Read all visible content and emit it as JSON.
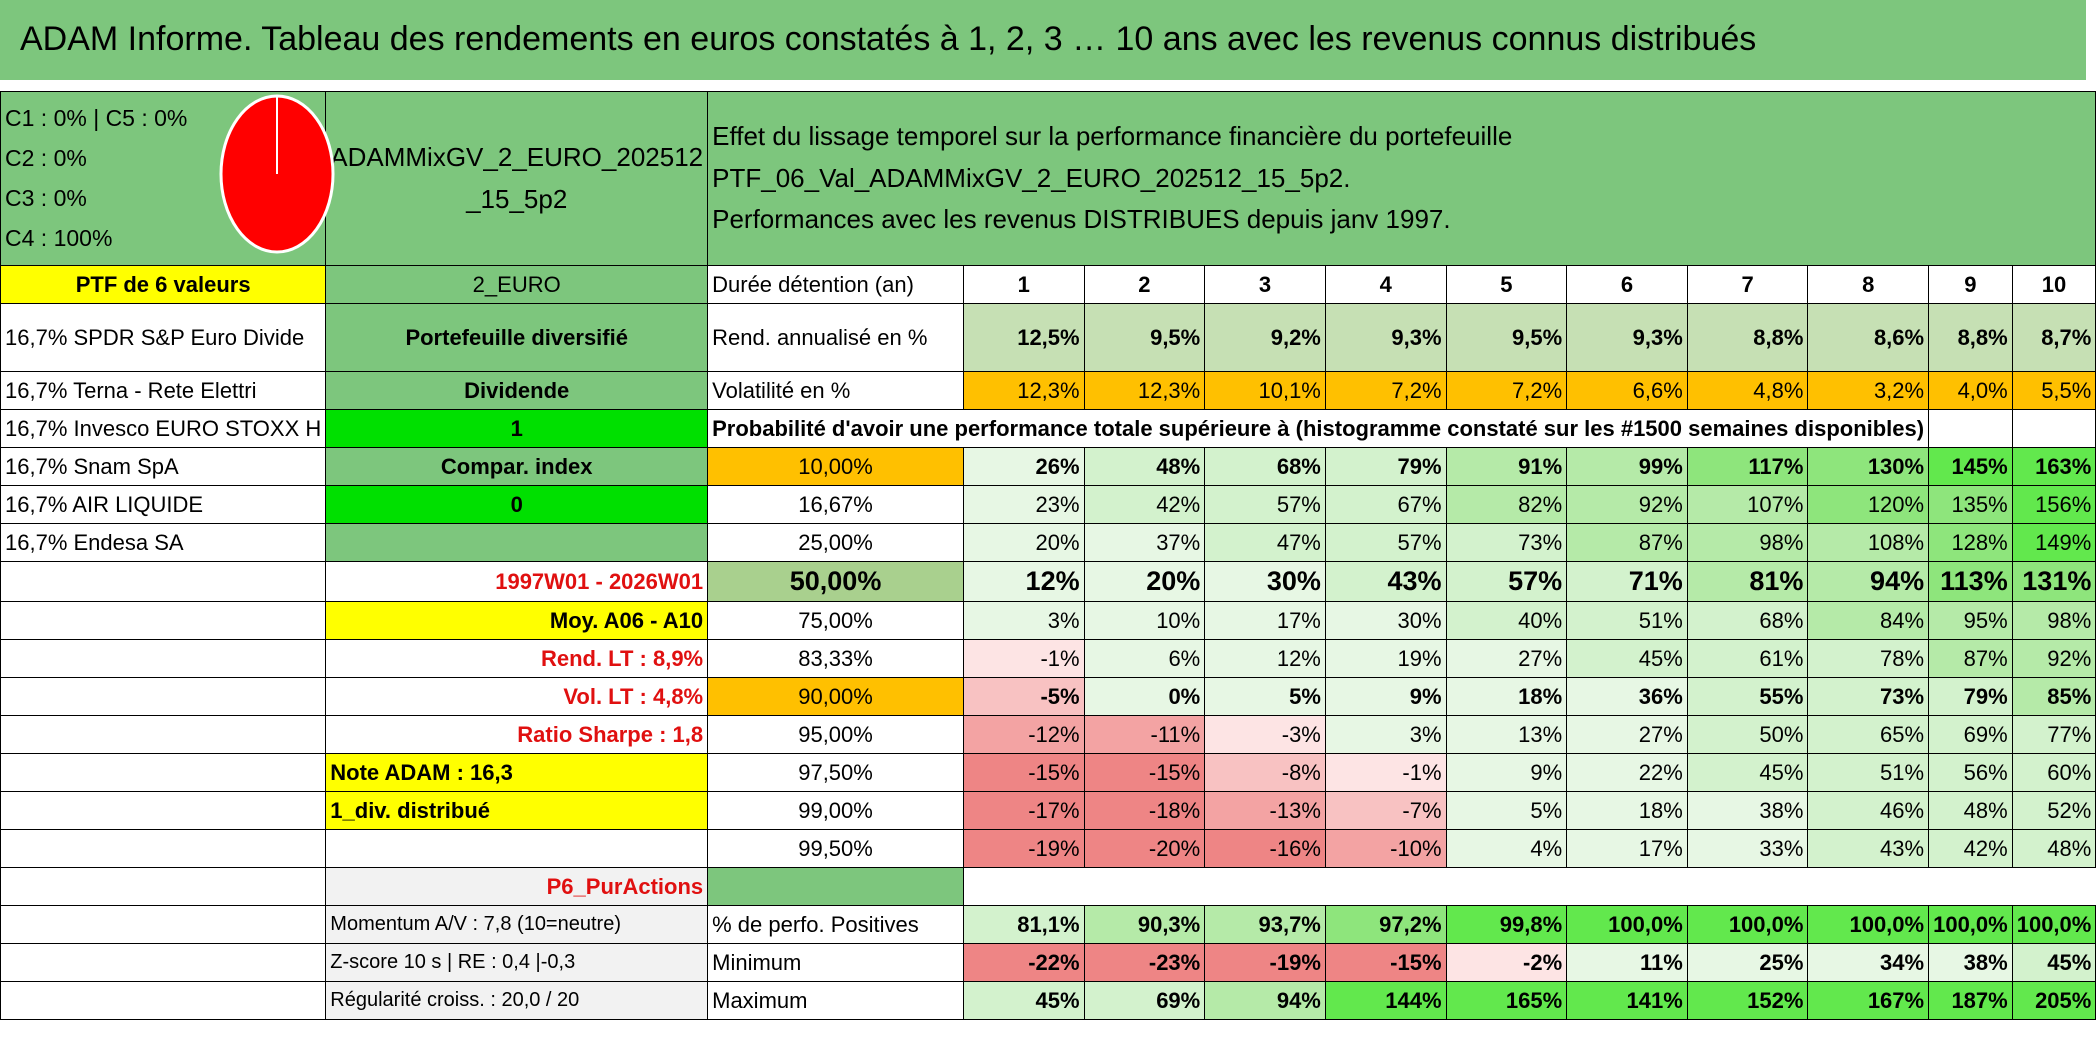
{
  "title": "ADAM Informe. Tableau des rendements en euros constatés à 1, 2, 3 … 10 ans avec les revenus connus distribués",
  "legend": {
    "lines": [
      "C1 : 0% | C5 : 0%",
      "C2 : 0%",
      "C3 : 0%",
      "C4 : 100%"
    ],
    "pie_color": "#ff0000"
  },
  "portfolio_name": "ADAMMixGV_2_EURO_202512_15_5p2",
  "header_text_line1": "Effet du lissage temporel sur la performance financière du portefeuille PTF_06_Val_ADAMMixGV_2_EURO_202512_15_5p2.",
  "header_text_line2": "Performances avec les revenus DISTRIBUES depuis janv 1997.",
  "ptf_label": "PTF de 6 valeurs",
  "currency": "2_EURO",
  "duration_label": "Durée détention (an)",
  "years": [
    "1",
    "2",
    "3",
    "4",
    "5",
    "6",
    "7",
    "8",
    "9",
    "10"
  ],
  "holdings": [
    "16,7% SPDR S&P Euro Divide",
    "16,7% Terna - Rete Elettri",
    "16,7% Invesco EURO STOXX H",
    "16,7% Snam SpA",
    "16,7% AIR LIQUIDE",
    "16,7% Endesa SA"
  ],
  "portfolio_type": "Portefeuille diversifié",
  "dividend_label": "Dividende",
  "dividend_value": "1",
  "compar_label": "Compar. index",
  "compar_value": "0",
  "rend_label": "Rend. annualisé en %",
  "rend_values": [
    "12,5%",
    "9,5%",
    "9,2%",
    "9,3%",
    "9,5%",
    "9,3%",
    "8,8%",
    "8,6%",
    "8,8%",
    "8,7%"
  ],
  "vol_label": "Volatilité en %",
  "vol_values": [
    "12,3%",
    "12,3%",
    "10,1%",
    "7,2%",
    "7,2%",
    "6,6%",
    "4,8%",
    "3,2%",
    "4,0%",
    "5,5%"
  ],
  "prob_label": "Probabilité d'avoir une performance totale supérieure à (histogramme constaté sur les #1500 semaines disponibles)",
  "period": "1997W01 - 2026W01",
  "moy_label": "Moy. A06 - A10",
  "rend_lt": "Rend. LT : 8,9%",
  "vol_lt": "Vol. LT : 4,8%",
  "sharpe": "Ratio Sharpe : 1,8",
  "note_adam": "Note ADAM : 16,3",
  "div_distrib": "1_div. distribué",
  "p6_label": "P6_PurActions",
  "prob_rows": [
    {
      "pct": "10,00%",
      "values": [
        "26%",
        "48%",
        "68%",
        "79%",
        "91%",
        "99%",
        "117%",
        "130%",
        "145%",
        "163%"
      ]
    },
    {
      "pct": "16,67%",
      "values": [
        "23%",
        "42%",
        "57%",
        "67%",
        "82%",
        "92%",
        "107%",
        "120%",
        "135%",
        "156%"
      ]
    },
    {
      "pct": "25,00%",
      "values": [
        "20%",
        "37%",
        "47%",
        "57%",
        "73%",
        "87%",
        "98%",
        "108%",
        "128%",
        "149%"
      ]
    },
    {
      "pct": "50,00%",
      "values": [
        "12%",
        "20%",
        "30%",
        "43%",
        "57%",
        "71%",
        "81%",
        "94%",
        "113%",
        "131%"
      ]
    },
    {
      "pct": "75,00%",
      "values": [
        "3%",
        "10%",
        "17%",
        "30%",
        "40%",
        "51%",
        "68%",
        "84%",
        "95%",
        "98%"
      ]
    },
    {
      "pct": "83,33%",
      "values": [
        "-1%",
        "6%",
        "12%",
        "19%",
        "27%",
        "45%",
        "61%",
        "78%",
        "87%",
        "92%"
      ]
    },
    {
      "pct": "90,00%",
      "values": [
        "-5%",
        "0%",
        "5%",
        "9%",
        "18%",
        "36%",
        "55%",
        "73%",
        "79%",
        "85%"
      ]
    },
    {
      "pct": "95,00%",
      "values": [
        "-12%",
        "-11%",
        "-3%",
        "3%",
        "13%",
        "27%",
        "50%",
        "65%",
        "69%",
        "77%"
      ]
    },
    {
      "pct": "97,50%",
      "values": [
        "-15%",
        "-15%",
        "-8%",
        "-1%",
        "9%",
        "22%",
        "45%",
        "51%",
        "56%",
        "60%"
      ]
    },
    {
      "pct": "99,00%",
      "values": [
        "-17%",
        "-18%",
        "-13%",
        "-7%",
        "5%",
        "18%",
        "38%",
        "46%",
        "48%",
        "52%"
      ]
    },
    {
      "pct": "99,50%",
      "values": [
        "-19%",
        "-20%",
        "-16%",
        "-10%",
        "4%",
        "17%",
        "33%",
        "43%",
        "42%",
        "48%"
      ]
    }
  ],
  "momentum": "Momentum A/V : 7,8 (10=neutre)",
  "zscore": "Z-score 10 s | RE : 0,4 |-0,3",
  "regularite": "Régularité croiss. : 20,0 / 20",
  "pos_label": "% de perfo. Positives",
  "pos_values": [
    "81,1%",
    "90,3%",
    "93,7%",
    "97,2%",
    "99,8%",
    "100,0%",
    "100,0%",
    "100,0%",
    "100,0%",
    "100,0%"
  ],
  "min_label": "Minimum",
  "min_values": [
    "-22%",
    "-23%",
    "-19%",
    "-15%",
    "-2%",
    "11%",
    "25%",
    "34%",
    "38%",
    "45%"
  ],
  "max_label": "Maximum",
  "max_values": [
    "45%",
    "69%",
    "94%",
    "144%",
    "165%",
    "141%",
    "152%",
    "167%",
    "187%",
    "205%"
  ]
}
